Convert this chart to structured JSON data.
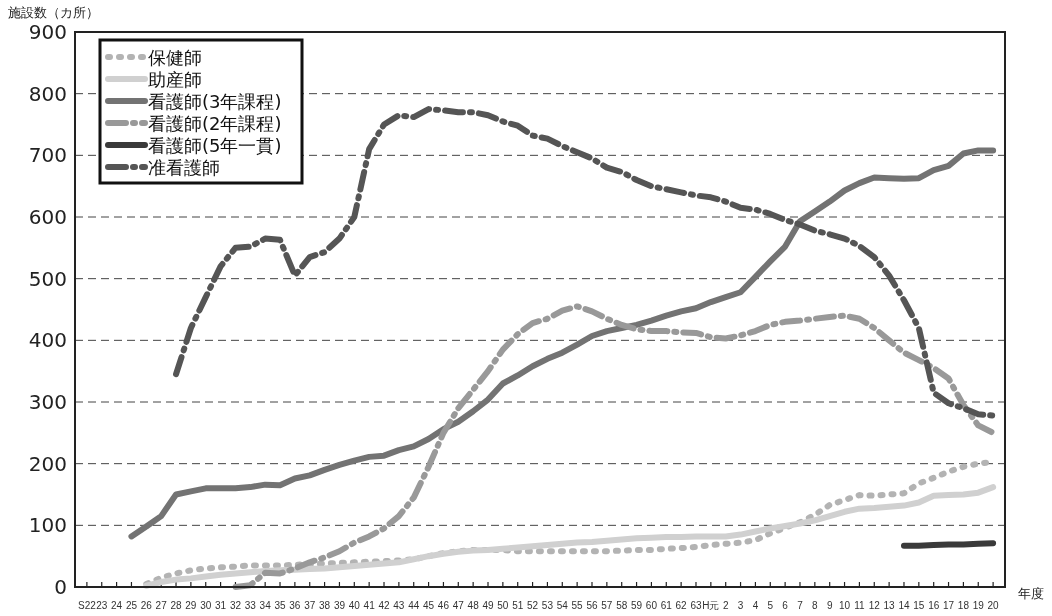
{
  "chart_data": {
    "type": "line",
    "ylabel": "施設数（カ所）",
    "xlabel": "年度",
    "categories": [
      "S22",
      "23",
      "24",
      "25",
      "26",
      "27",
      "28",
      "29",
      "30",
      "31",
      "32",
      "33",
      "34",
      "35",
      "36",
      "37",
      "38",
      "39",
      "40",
      "41",
      "42",
      "43",
      "44",
      "45",
      "46",
      "47",
      "48",
      "49",
      "50",
      "51",
      "52",
      "53",
      "54",
      "55",
      "56",
      "57",
      "58",
      "59",
      "60",
      "61",
      "62",
      "63",
      "H元",
      "2",
      "3",
      "4",
      "5",
      "6",
      "7",
      "8",
      "9",
      "10",
      "11",
      "12",
      "13",
      "14",
      "15",
      "16",
      "17",
      "18",
      "19",
      "20"
    ],
    "ylim": [
      0,
      900
    ],
    "yticks": [
      0,
      100,
      200,
      300,
      400,
      500,
      600,
      700,
      800,
      900
    ],
    "grid": "y",
    "legend": "top left",
    "marker": "none",
    "series": [
      {
        "name": "保健師",
        "color": "#b3b3b3",
        "line_style": "dotted",
        "values": [
          null,
          null,
          null,
          null,
          5,
          15,
          22,
          27,
          30,
          32,
          33,
          35,
          35,
          35,
          36,
          37,
          38,
          39,
          40,
          41,
          42,
          43,
          45,
          50,
          55,
          58,
          60,
          60,
          60,
          58,
          58,
          58,
          58,
          58,
          58,
          58,
          59,
          60,
          60,
          62,
          63,
          65,
          68,
          70,
          72,
          76,
          87,
          96,
          105,
          117,
          133,
          141,
          149,
          148,
          150,
          152,
          168,
          177,
          187,
          195,
          200,
          203
        ]
      },
      {
        "name": "助産師",
        "color": "#d0d0d0",
        "line_style": "solid",
        "values": [
          null,
          null,
          null,
          null,
          2,
          8,
          12,
          14,
          17,
          20,
          22,
          24,
          26,
          27,
          28,
          29,
          30,
          32,
          34,
          36,
          38,
          40,
          45,
          50,
          54,
          57,
          59,
          60,
          62,
          64,
          66,
          68,
          70,
          72,
          73,
          75,
          77,
          79,
          80,
          81,
          81,
          82,
          82,
          82,
          85,
          90,
          95,
          99,
          103,
          108,
          115,
          122,
          127,
          128,
          130,
          132,
          137,
          148,
          149,
          150,
          153,
          162
        ]
      },
      {
        "name": "看護師(3年課程)",
        "color": "#737373",
        "line_style": "solid",
        "values": [
          null,
          null,
          null,
          82,
          98,
          115,
          150,
          155,
          160,
          160,
          160,
          162,
          166,
          165,
          176,
          181,
          190,
          198,
          205,
          211,
          213,
          222,
          228,
          240,
          256,
          268,
          285,
          304,
          330,
          343,
          358,
          370,
          380,
          393,
          407,
          415,
          420,
          425,
          432,
          440,
          447,
          452,
          462,
          470,
          478,
          503,
          528,
          552,
          593,
          609,
          625,
          643,
          655,
          664,
          663,
          662,
          663,
          676,
          683,
          703,
          708,
          708
        ]
      },
      {
        "name": "看護師(2年課程)",
        "color": "#999999",
        "line_style": "dashed",
        "values": [
          null,
          null,
          null,
          null,
          null,
          null,
          null,
          null,
          null,
          null,
          0,
          3,
          23,
          22,
          30,
          40,
          48,
          58,
          72,
          82,
          95,
          115,
          145,
          195,
          250,
          290,
          320,
          350,
          385,
          410,
          428,
          435,
          448,
          455,
          447,
          435,
          425,
          418,
          415,
          415,
          413,
          412,
          405,
          403,
          408,
          415,
          425,
          430,
          432,
          435,
          438,
          440,
          435,
          420,
          400,
          380,
          368,
          355,
          338,
          295,
          262,
          250
        ]
      },
      {
        "name": "看護師(5年一貫)",
        "color": "#3a3a3a",
        "line_style": "solid",
        "values": [
          null,
          null,
          null,
          null,
          null,
          null,
          null,
          null,
          null,
          null,
          null,
          null,
          null,
          null,
          null,
          null,
          null,
          null,
          null,
          null,
          null,
          null,
          null,
          null,
          null,
          null,
          null,
          null,
          null,
          null,
          null,
          null,
          null,
          null,
          null,
          null,
          null,
          null,
          null,
          null,
          null,
          null,
          null,
          null,
          null,
          null,
          null,
          null,
          null,
          null,
          null,
          null,
          null,
          null,
          null,
          67,
          67,
          68,
          69,
          69,
          70,
          71
        ]
      },
      {
        "name": "准看護師",
        "color": "#555555",
        "line_style": "dashed",
        "values": [
          null,
          null,
          null,
          null,
          null,
          null,
          345,
          420,
          470,
          520,
          550,
          552,
          565,
          563,
          505,
          535,
          543,
          565,
          600,
          710,
          750,
          765,
          762,
          775,
          773,
          770,
          770,
          765,
          755,
          748,
          732,
          727,
          715,
          705,
          695,
          680,
          673,
          660,
          650,
          645,
          640,
          635,
          632,
          625,
          615,
          612,
          605,
          595,
          588,
          578,
          572,
          565,
          553,
          535,
          505,
          465,
          420,
          315,
          298,
          290,
          280,
          278
        ]
      }
    ]
  }
}
